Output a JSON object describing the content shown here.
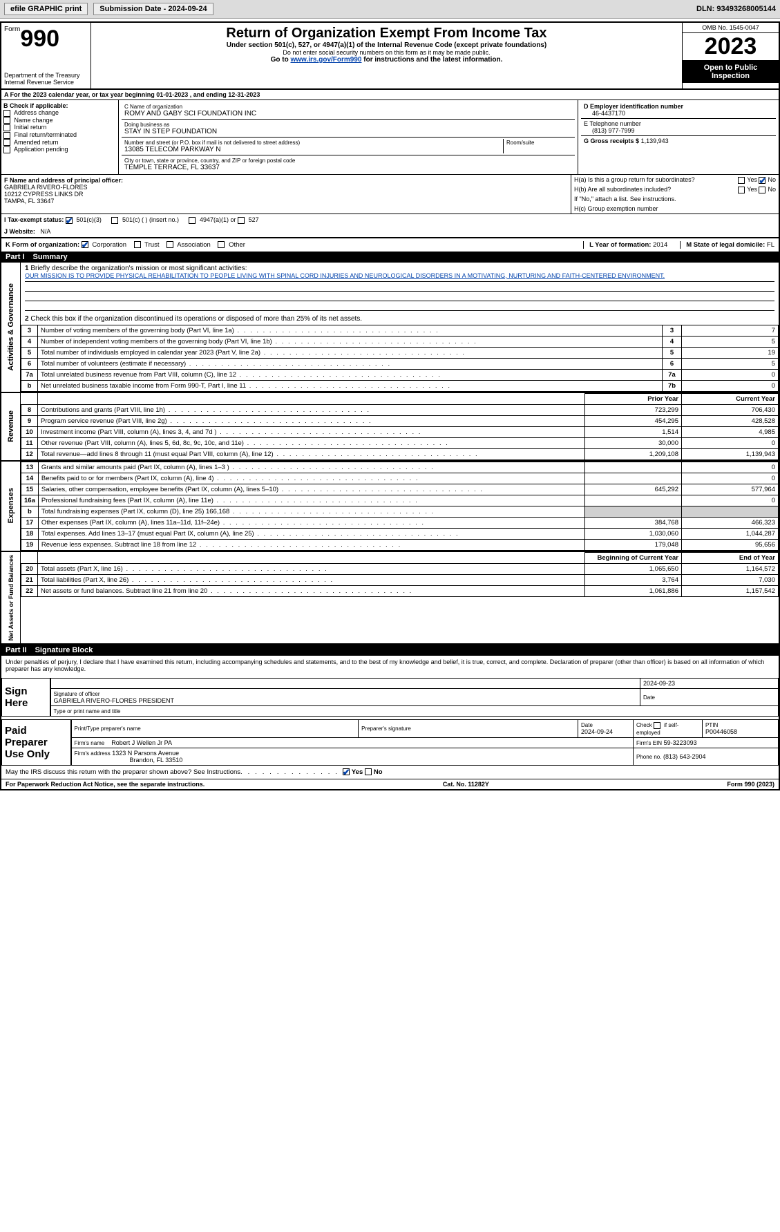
{
  "topbar": {
    "efile": "efile GRAPHIC print",
    "submission": "Submission Date - 2024-09-24",
    "dln_label": "DLN:",
    "dln": "93493268005144"
  },
  "header": {
    "form_word": "Form",
    "form_num": "990",
    "dept": "Department of the Treasury Internal Revenue Service",
    "title": "Return of Organization Exempt From Income Tax",
    "subtitle": "Under section 501(c), 527, or 4947(a)(1) of the Internal Revenue Code (except private foundations)",
    "ssn_note": "Do not enter social security numbers on this form as it may be made public.",
    "goto": "Go to www.irs.gov/Form990 for instructions and the latest information.",
    "omb": "OMB No. 1545-0047",
    "year": "2023",
    "inspect": "Open to Public Inspection"
  },
  "period": "A For the 2023 calendar year, or tax year beginning 01-01-2023    , and ending 12-31-2023",
  "B": {
    "title": "B Check if applicable:",
    "opts": [
      "Address change",
      "Name change",
      "Initial return",
      "Final return/terminated",
      "Amended return",
      "Application pending"
    ]
  },
  "C": {
    "name_lbl": "C Name of organization",
    "name": "ROMY AND GABY SCI FOUNDATION INC",
    "dba_lbl": "Doing business as",
    "dba": "STAY IN STEP FOUNDATION",
    "street_lbl": "Number and street (or P.O. box if mail is not delivered to street address)",
    "street": "13085 TELECOM PARKWAY N",
    "room_lbl": "Room/suite",
    "city_lbl": "City or town, state or province, country, and ZIP or foreign postal code",
    "city": "TEMPLE TERRACE, FL  33637"
  },
  "D": {
    "lbl": "D Employer identification number",
    "val": "46-4437170"
  },
  "E": {
    "lbl": "E Telephone number",
    "val": "(813) 977-7999"
  },
  "G": {
    "lbl": "G Gross receipts $",
    "val": "1,139,943"
  },
  "F": {
    "lbl": "F Name and address of principal officer:",
    "name": "GABRIELA RIVERO-FLORES",
    "addr1": "10212 CYPRESS LINKS DR",
    "addr2": "TAMPA, FL  33647"
  },
  "H": {
    "a": "H(a)  Is this a group return for subordinates?",
    "b": "H(b)  Are all subordinates included?",
    "b_note": "If \"No,\" attach a list. See instructions.",
    "c": "H(c)  Group exemption number",
    "yes": "Yes",
    "no": "No"
  },
  "I": {
    "lbl": "I   Tax-exempt status:",
    "o1": "501(c)(3)",
    "o2": "501(c) (  ) (insert no.)",
    "o3": "4947(a)(1) or",
    "o4": "527"
  },
  "J": {
    "lbl": "J   Website:",
    "val": "N/A"
  },
  "K": {
    "lbl": "K Form of organization:",
    "o1": "Corporation",
    "o2": "Trust",
    "o3": "Association",
    "o4": "Other"
  },
  "L": {
    "lbl": "L Year of formation:",
    "val": "2014"
  },
  "M": {
    "lbl": "M State of legal domicile:",
    "val": "FL"
  },
  "part1": {
    "num": "Part I",
    "title": "Summary",
    "num2": "Part II",
    "title2": "Signature Block"
  },
  "summary": {
    "q1": "Briefly describe the organization's mission or most significant activities:",
    "mission": "OUR MISSION IS TO PROVIDE PHYSICAL REHABILITATION TO PEOPLE LIVING WITH SPINAL CORD INJURIES AND NEUROLOGICAL DISORDERS IN A MOTIVATING, NURTURING AND FAITH-CENTERED ENVIRONMENT.",
    "q2": "Check this box      if the organization discontinued its operations or disposed of more than 25% of its net assets.",
    "rows_ag": [
      {
        "n": "3",
        "t": "Number of voting members of the governing body (Part VI, line 1a)",
        "rn": "3",
        "v": "7"
      },
      {
        "n": "4",
        "t": "Number of independent voting members of the governing body (Part VI, line 1b)",
        "rn": "4",
        "v": "5"
      },
      {
        "n": "5",
        "t": "Total number of individuals employed in calendar year 2023 (Part V, line 2a)",
        "rn": "5",
        "v": "19"
      },
      {
        "n": "6",
        "t": "Total number of volunteers (estimate if necessary)",
        "rn": "6",
        "v": "5"
      },
      {
        "n": "7a",
        "t": "Total unrelated business revenue from Part VIII, column (C), line 12",
        "rn": "7a",
        "v": "0"
      },
      {
        "n": "b",
        "t": "Net unrelated business taxable income from Form 990-T, Part I, line 11",
        "rn": "7b",
        "v": "0"
      }
    ],
    "prior_hdr": "Prior Year",
    "curr_hdr": "Current Year",
    "boy_hdr": "Beginning of Current Year",
    "eoy_hdr": "End of Year",
    "revenue": [
      {
        "n": "8",
        "t": "Contributions and grants (Part VIII, line 1h)",
        "p": "723,299",
        "c": "706,430"
      },
      {
        "n": "9",
        "t": "Program service revenue (Part VIII, line 2g)",
        "p": "454,295",
        "c": "428,528"
      },
      {
        "n": "10",
        "t": "Investment income (Part VIII, column (A), lines 3, 4, and 7d )",
        "p": "1,514",
        "c": "4,985"
      },
      {
        "n": "11",
        "t": "Other revenue (Part VIII, column (A), lines 5, 6d, 8c, 9c, 10c, and 11e)",
        "p": "30,000",
        "c": "0"
      },
      {
        "n": "12",
        "t": "Total revenue—add lines 8 through 11 (must equal Part VIII, column (A), line 12)",
        "p": "1,209,108",
        "c": "1,139,943"
      }
    ],
    "expenses": [
      {
        "n": "13",
        "t": "Grants and similar amounts paid (Part IX, column (A), lines 1–3 )",
        "p": "",
        "c": "0"
      },
      {
        "n": "14",
        "t": "Benefits paid to or for members (Part IX, column (A), line 4)",
        "p": "",
        "c": "0"
      },
      {
        "n": "15",
        "t": "Salaries, other compensation, employee benefits (Part IX, column (A), lines 5–10)",
        "p": "645,292",
        "c": "577,964"
      },
      {
        "n": "16a",
        "t": "Professional fundraising fees (Part IX, column (A), line 11e)",
        "p": "",
        "c": "0"
      },
      {
        "n": "b",
        "t": "Total fundraising expenses (Part IX, column (D), line 25) 166,168",
        "p": "GRAY",
        "c": "GRAY"
      },
      {
        "n": "17",
        "t": "Other expenses (Part IX, column (A), lines 11a–11d, 11f–24e)",
        "p": "384,768",
        "c": "466,323"
      },
      {
        "n": "18",
        "t": "Total expenses. Add lines 13–17 (must equal Part IX, column (A), line 25)",
        "p": "1,030,060",
        "c": "1,044,287"
      },
      {
        "n": "19",
        "t": "Revenue less expenses. Subtract line 18 from line 12",
        "p": "179,048",
        "c": "95,656"
      }
    ],
    "netassets": [
      {
        "n": "20",
        "t": "Total assets (Part X, line 16)",
        "p": "1,065,650",
        "c": "1,164,572"
      },
      {
        "n": "21",
        "t": "Total liabilities (Part X, line 26)",
        "p": "3,764",
        "c": "7,030"
      },
      {
        "n": "22",
        "t": "Net assets or fund balances. Subtract line 21 from line 20",
        "p": "1,061,886",
        "c": "1,157,542"
      }
    ]
  },
  "vlabels": {
    "ag": "Activities & Governance",
    "rev": "Revenue",
    "exp": "Expenses",
    "na": "Net Assets or Fund Balances"
  },
  "penalty": "Under penalties of perjury, I declare that I have examined this return, including accompanying schedules and statements, and to the best of my knowledge and belief, it is true, correct, and complete. Declaration of preparer (other than officer) is based on all information of which preparer has any knowledge.",
  "sign": {
    "here": "Sign Here",
    "sig_lbl": "Signature of officer",
    "date_lbl": "Date",
    "date_val": "2024-09-23",
    "officer": "GABRIELA RIVERO-FLORES PRESIDENT",
    "type_lbl": "Type or print name and title"
  },
  "prep": {
    "title": "Paid Preparer Use Only",
    "name_lbl": "Print/Type preparer's name",
    "sig_lbl": "Preparer's signature",
    "date_lbl": "Date",
    "date": "2024-09-24",
    "check_lbl": "Check     if self-employed",
    "ptin_lbl": "PTIN",
    "ptin": "P00446058",
    "firm_lbl": "Firm's name",
    "firm": "Robert J Wellen Jr PA",
    "ein_lbl": "Firm's EIN",
    "ein": "59-3223093",
    "addr_lbl": "Firm's address",
    "addr1": "1323 N Parsons Avenue",
    "addr2": "Brandon, FL  33510",
    "phone_lbl": "Phone no.",
    "phone": "(813) 643-2904"
  },
  "discuss": "May the IRS discuss this return with the preparer shown above? See Instructions.",
  "foot": {
    "l": "For Paperwork Reduction Act Notice, see the separate instructions.",
    "c": "Cat. No. 11282Y",
    "r": "Form 990 (2023)"
  }
}
